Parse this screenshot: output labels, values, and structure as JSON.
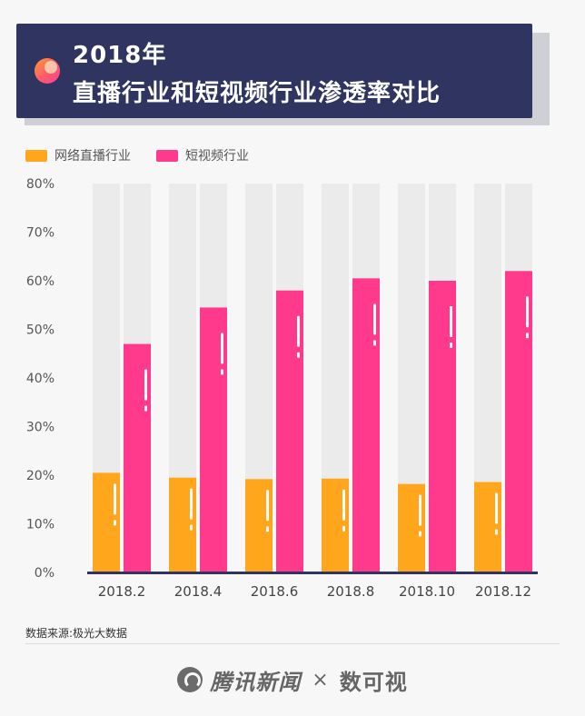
{
  "header": {
    "title_line1": "2018年",
    "title_line2": "直播行业和短视频行业渗透率对比"
  },
  "colors": {
    "title_bg": "#2f3461",
    "live": "#ffa61c",
    "short_video": "#ff3a8c",
    "bar_track": "#ebebeb",
    "axis": "#2f3461"
  },
  "chart_data": {
    "type": "bar",
    "categories": [
      "2018.2",
      "2018.4",
      "2018.6",
      "2018.8",
      "2018.10",
      "2018.12"
    ],
    "series": [
      {
        "name": "网络直播行业",
        "values": [
          20.5,
          19.5,
          19.2,
          19.3,
          18.2,
          18.6
        ]
      },
      {
        "name": "短视频行业",
        "values": [
          47.0,
          54.5,
          58.0,
          60.5,
          60.0,
          62.0
        ]
      }
    ],
    "yticks": [
      "0%",
      "10%",
      "20%",
      "30%",
      "40%",
      "50%",
      "60%",
      "70%",
      "80%"
    ],
    "ylim": [
      0,
      80
    ],
    "grid": false,
    "legend_position": "top-left"
  },
  "footer": {
    "source": "数据来源:极光大数据",
    "brand1": "腾讯新闻",
    "separator": "×",
    "brand2": "数可视"
  }
}
